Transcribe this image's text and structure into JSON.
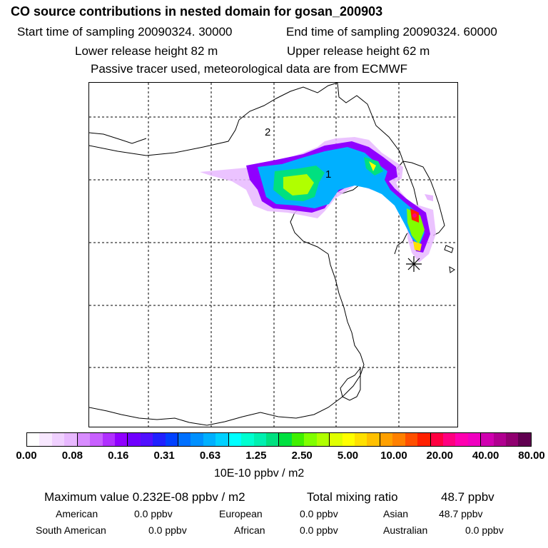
{
  "header": {
    "title": "CO  source contributions in nested domain for gosan_200903",
    "start_label": "Start time of sampling 20090324. 30000",
    "end_label": "End time of sampling 20090324. 60000",
    "lower_label": "Lower release height   82 m",
    "upper_label": "Upper release height   62 m",
    "note": "Passive tracer used, meteorological data are from ECMWF"
  },
  "map": {
    "markers": [
      "2",
      "1"
    ]
  },
  "colorbar": {
    "ticks": [
      "0.00",
      "0.08",
      "0.16",
      "0.31",
      "0.63",
      "1.25",
      "2.50",
      "5.00",
      "10.00",
      "20.00",
      "40.00",
      "80.00"
    ],
    "unit": "10E-10 ppbv / m2",
    "colors": [
      "#ffffff",
      "#f8e8ff",
      "#f0d0ff",
      "#e8b8ff",
      "#d88cff",
      "#c860ff",
      "#b030ff",
      "#9000ff",
      "#7000ff",
      "#5010ff",
      "#2020ff",
      "#0040ff",
      "#0070ff",
      "#0090ff",
      "#00b0ff",
      "#00d0ff",
      "#00ffff",
      "#00ffd0",
      "#00f0b0",
      "#00e080",
      "#00e040",
      "#40f000",
      "#80ff00",
      "#b0ff00",
      "#e0ff00",
      "#ffff00",
      "#ffe000",
      "#ffc000",
      "#ffa000",
      "#ff8000",
      "#ff5000",
      "#ff2000",
      "#ff0040",
      "#ff0080",
      "#ff00b0",
      "#f000c0",
      "#d000b0",
      "#b00090",
      "#900070",
      "#600050"
    ]
  },
  "footer": {
    "max_label": "Maximum value  0.232E-08 ppbv / m2",
    "total_label": "Total mixing ratio",
    "total_value": "48.7 ppbv",
    "rows": [
      [
        [
          "American",
          "0.0 ppbv"
        ],
        [
          "European",
          "0.0 ppbv"
        ],
        [
          "Asian",
          "48.7 ppbv"
        ]
      ],
      [
        [
          "South American",
          "0.0 ppbv"
        ],
        [
          "African",
          "0.0 ppbv"
        ],
        [
          "Australian",
          "0.0 ppbv"
        ]
      ]
    ]
  }
}
